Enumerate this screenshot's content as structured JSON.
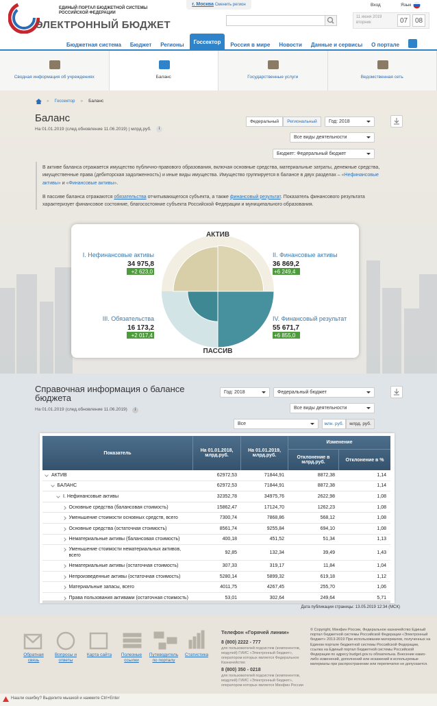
{
  "header": {
    "logo_line1": "ЕДИНЫЙ ПОРТАЛ БЮДЖЕТНОЙ СИСТЕМЫ",
    "logo_line2": "РОССИЙСКОЙ ФЕДЕРАЦИИ",
    "logo_title": "ЭЛЕКТРОННЫЙ БЮДЖЕТ",
    "city": "г. Москва",
    "change_region": "Сменить регион",
    "login": "Вход",
    "language": "Язык",
    "date": "11 июня 2019",
    "weekday": "вторник",
    "hours": "07",
    "minutes": "08"
  },
  "nav": {
    "items": [
      "Бюджетная система",
      "Бюджет",
      "Регионы",
      "Госсектор",
      "Россия в мире",
      "Новости",
      "Данные и сервисы",
      "О портале"
    ],
    "active_index": 3
  },
  "subnav": {
    "items": [
      "Сводная информация об учреждениях",
      "Баланс",
      "Государственные услуги",
      "Ведомственная сеть"
    ],
    "active_index": 1
  },
  "breadcrumb": [
    "Госсектор",
    "Баланс"
  ],
  "balance": {
    "title": "Баланс",
    "subtitle": "На 01.01.2019 (след.обновление 11.06.2019) | млрд.руб.",
    "toggle_federal": "Федеральный",
    "toggle_regional": "Региональный",
    "year": "Год: 2018",
    "activity": "Все виды деятельности",
    "budget": "Бюджет: Федеральный бюджет",
    "p1_text": "В активе баланса отражается имущество публично-правового образования, включая основные средства, материальные затраты, денежные средства, имущественные права (дебиторская задолженность) и иные виды имущества. Имущество группируется в балансе в двух разделах –",
    "p1_link1": "«Нефинансовые активы»",
    "p1_and": "и",
    "p1_link2": "«Финансовые активы»",
    "p1_end": ".",
    "p2_text1": "В пассиве баланса отражаются",
    "p2_link1": "обязательства",
    "p2_text2": "отчитывающегося субъекта, а также",
    "p2_link2": "финансовый результат",
    "p2_text3": ". Показатель финансового результата характеризует финансовое состояние, благосостояние субъекта Российской Федерации и муниципального образования."
  },
  "balance_chart": {
    "top_label": "АКТИВ",
    "bottom_label": "ПАССИВ",
    "quadrants": [
      {
        "name": "I. Нефинансовые активы",
        "value": 34975.8,
        "value_label": "34 975,8",
        "change": "+2 623,0"
      },
      {
        "name": "II. Финансовые активы",
        "value": 36869.2,
        "value_label": "36 869,2",
        "change": "+6 249,4"
      },
      {
        "name": "III. Обязательства",
        "value": 16173.2,
        "value_label": "16 173,2",
        "change": "+2 017,4"
      },
      {
        "name": "IV. Финансовый результат",
        "value": 55671.7,
        "value_label": "55 671,7",
        "change": "+6 855,0"
      }
    ]
  },
  "reference": {
    "title": "Справочная информация о балансе бюджета",
    "subtitle": "На 01.01.2019 (след.обновление 11.06.2019)",
    "year": "Год: 2018",
    "budget": "Федеральный бюджет",
    "activity": "Все виды деятельности",
    "filter": "Все",
    "unit_mln": "млн. руб.",
    "unit_bln": "млрд. руб.",
    "table": {
      "headers": {
        "indicator": "Показатель",
        "col_2018": "На 01.01.2018, млрд.руб.",
        "col_2019": "На 01.01.2019, млрд.руб.",
        "change": "Изменение",
        "dev_abs": "Отклонение в млрд.руб.",
        "dev_pct": "Отклонение в %"
      },
      "rows": [
        {
          "label": "АКТИВ",
          "values": [
            "62972,53",
            "71844,91",
            "8872,38",
            "1,14"
          ],
          "children": [
            {
              "label": "БАЛАНС",
              "values": [
                "62972,53",
                "71844,91",
                "8872,38",
                "1,14"
              ],
              "children": [
                {
                  "label": "I. Нефинансовые активы",
                  "values": [
                    "32352,78",
                    "34975,76",
                    "2622,98",
                    "1,08"
                  ],
                  "children": [
                    {
                      "label": "Основные средства (балансовая стоимость)",
                      "values": [
                        "15862,47",
                        "17124,70",
                        "1262,23",
                        "1,08"
                      ]
                    },
                    {
                      "label": "Уменьшение стоимости основных средств, всего",
                      "values": [
                        "7300,74",
                        "7868,86",
                        "568,12",
                        "1,08"
                      ]
                    },
                    {
                      "label": "Основные средства (остаточная стоимость)",
                      "values": [
                        "8561,74",
                        "9255,84",
                        "694,10",
                        "1,08"
                      ]
                    },
                    {
                      "label": "Нематериальные активы (балансовая стоимость)",
                      "values": [
                        "400,18",
                        "451,52",
                        "51,34",
                        "1,13"
                      ]
                    },
                    {
                      "label": "Уменьшение стоимости нематериальных активов, всего",
                      "values": [
                        "92,85",
                        "132,34",
                        "39,49",
                        "1,43"
                      ]
                    },
                    {
                      "label": "Нематериальные активы (остаточная стоимость)",
                      "values": [
                        "307,33",
                        "319,17",
                        "11,84",
                        "1,04"
                      ]
                    },
                    {
                      "label": "Непроизведенные активы (остаточная стоимость)",
                      "values": [
                        "5280,14",
                        "5899,32",
                        "619,18",
                        "1,12"
                      ]
                    },
                    {
                      "label": "Материальные запасы, всего",
                      "values": [
                        "4011,75",
                        "4267,45",
                        "255,70",
                        "1,06"
                      ]
                    },
                    {
                      "label": "Права пользования активами (остаточная стоимость)",
                      "values": [
                        "53,01",
                        "302,64",
                        "249,64",
                        "5,71"
                      ]
                    }
                  ]
                }
              ]
            }
          ]
        }
      ]
    },
    "published": "Дата публикации страницы: 13.05.2019 12:34 (МСК)"
  },
  "footer": {
    "links": [
      "Обратная связь",
      "Вопросы и ответы",
      "Карта сайта",
      "Полезные ссылки",
      "Путеводитель по порталу",
      "Статистика"
    ],
    "hotline_title": "Телефон «Горячей линии»",
    "phone1": "8 (800) 2222 - 777",
    "phone1_note": "для пользователей подсистем (компонентов, модулей) ГИИС «Электронный бюджет», оператором которых является Федеральное Казначейство",
    "phone2": "8 (800) 350 - 0218",
    "phone2_note": "для пользователей подсистем (компонентов, модулей) ГИИС «Электронный бюджет», оператором которых является Минфин России",
    "copyright": "© Copyright, Минфин России, Федеральное казначейство Единый портал бюджетной системы Российской Федерации «Электронный бюджет» 2013-2019 При использовании материалов, полученных на Едином портале бюджетной системы Российской Федерации, ссылка на Единый портал бюджетной системы Российской Федерации по адресу budget.gov.ru обязательна. Внесение каких-либо изменений, дополнений или искажений в используемые материалы при распространении или перепечатке не допускается.",
    "error_notice": "Нашли ошибку? Выделите мышкой и нажмите Ctrl+Enter"
  }
}
